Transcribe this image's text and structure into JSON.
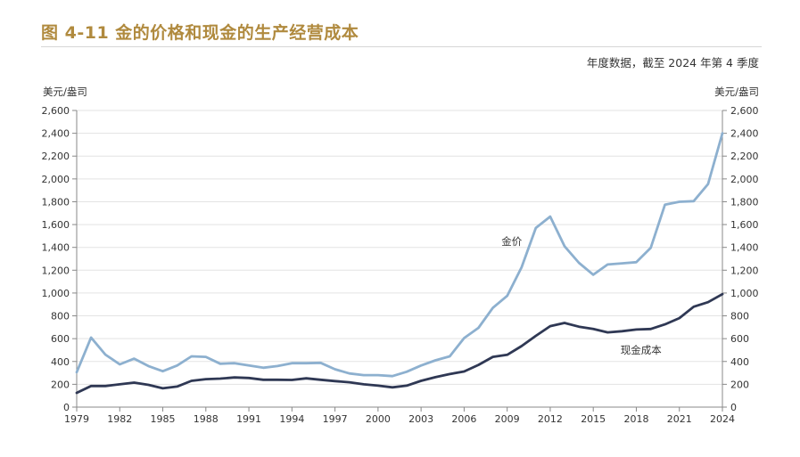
{
  "title": "图 4-11  金的价格和现金的生产经营成本",
  "subtitle": "年度数据，截至 2024 年第 4 季度",
  "unit_left": "美元/盎司",
  "unit_right": "美元/盎司",
  "colors": {
    "title": "#b08a3e",
    "gold_price": "#8db0cf",
    "cash_cost": "#2f3854",
    "axis": "#888888"
  },
  "chart_data": {
    "type": "line",
    "title": "图 4-11  金的价格和现金的生产经营成本",
    "subtitle": "年度数据，截至 2024 年第 4 季度",
    "ylabel": "美元/盎司",
    "ylabel_right": "美元/盎司",
    "xlim": [
      1979,
      2024
    ],
    "ylim": [
      0,
      2600
    ],
    "x_ticks": [
      1979,
      1982,
      1985,
      1988,
      1991,
      1994,
      1997,
      2000,
      2003,
      2006,
      2009,
      2012,
      2015,
      2018,
      2021,
      2024
    ],
    "y_ticks": [
      0,
      200,
      400,
      600,
      800,
      1000,
      1200,
      1400,
      1600,
      1800,
      2000,
      2200,
      2400,
      2600
    ],
    "y_tick_labels": [
      "0",
      "200",
      "400",
      "600",
      "800",
      "1,000",
      "1,200",
      "1,400",
      "1,600",
      "1,800",
      "2,000",
      "2,200",
      "2,400",
      "2,600"
    ],
    "grid": true,
    "x": [
      1979,
      1980,
      1981,
      1982,
      1983,
      1984,
      1985,
      1986,
      1987,
      1988,
      1989,
      1990,
      1991,
      1992,
      1993,
      1994,
      1995,
      1996,
      1997,
      1998,
      1999,
      2000,
      2001,
      2002,
      2003,
      2004,
      2005,
      2006,
      2007,
      2008,
      2009,
      2010,
      2011,
      2012,
      2013,
      2014,
      2015,
      2016,
      2017,
      2018,
      2019,
      2020,
      2021,
      2022,
      2023,
      2024
    ],
    "series": [
      {
        "name": "金价",
        "color": "#8db0cf",
        "values": [
          305,
          610,
          460,
          375,
          425,
          360,
          315,
          365,
          445,
          440,
          380,
          385,
          365,
          345,
          360,
          385,
          385,
          388,
          332,
          295,
          280,
          280,
          272,
          310,
          365,
          410,
          445,
          605,
          695,
          870,
          975,
          1225,
          1570,
          1670,
          1410,
          1265,
          1160,
          1250,
          1260,
          1270,
          1395,
          1775,
          1800,
          1805,
          1955,
          2400
        ]
      },
      {
        "name": "现金成本",
        "color": "#2f3854",
        "values": [
          125,
          185,
          185,
          200,
          215,
          195,
          165,
          180,
          230,
          245,
          250,
          260,
          255,
          240,
          240,
          238,
          252,
          240,
          228,
          218,
          200,
          188,
          173,
          188,
          230,
          262,
          290,
          312,
          370,
          440,
          458,
          535,
          625,
          710,
          738,
          705,
          685,
          655,
          665,
          680,
          685,
          725,
          780,
          880,
          920,
          990
        ]
      }
    ],
    "annotations": [
      {
        "text": "金价",
        "x": 2008.6,
        "y": 1420
      },
      {
        "text": "现金成本",
        "x": 2016.9,
        "y": 470
      }
    ]
  }
}
